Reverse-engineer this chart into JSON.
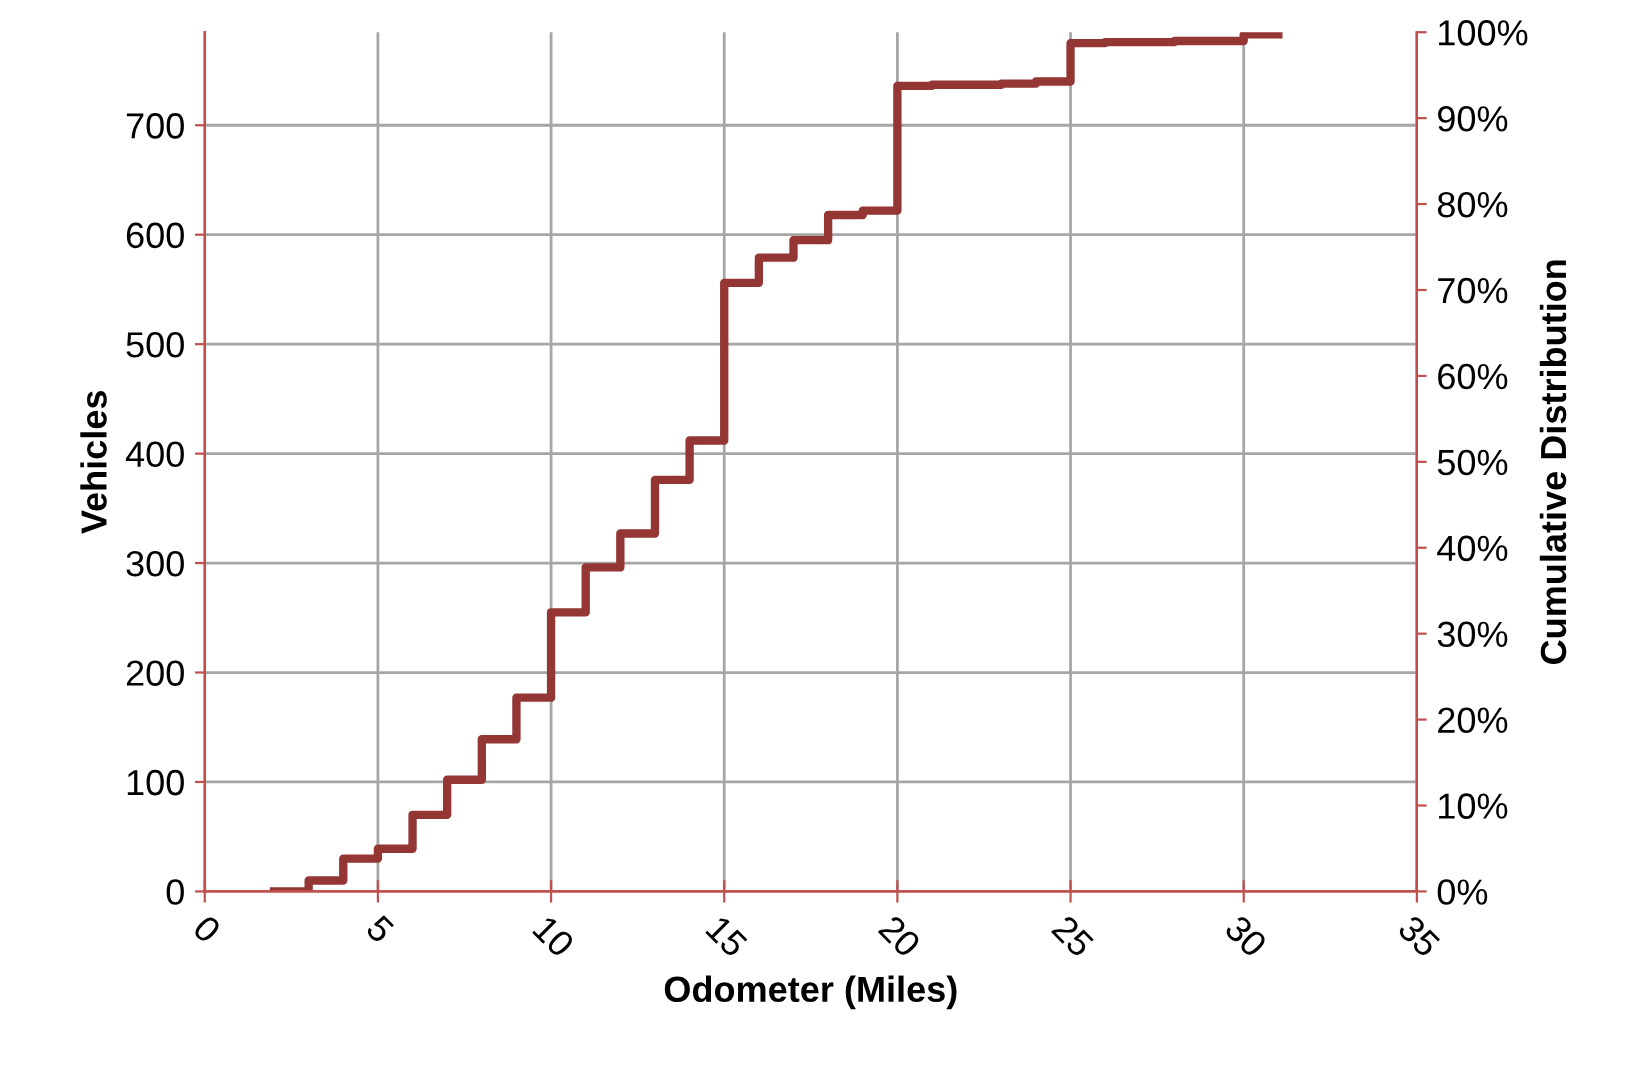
{
  "chart_data": {
    "type": "step",
    "xlabel": "Odometer (Miles)",
    "ylabel": "Vehicles",
    "y2label": "Cumulative Distribution",
    "x": [
      2,
      3,
      4,
      5,
      6,
      7,
      8,
      9,
      10,
      11,
      12,
      13,
      14,
      15,
      16,
      17,
      18,
      19,
      20,
      21,
      22,
      23,
      24,
      25,
      26,
      27,
      28,
      29,
      30,
      31
    ],
    "series": [
      {
        "color": "#943634",
        "values": [
          0,
          10,
          30,
          39,
          70,
          102,
          139,
          177,
          255,
          296,
          327,
          376,
          412,
          556,
          579,
          595,
          618,
          622,
          736,
          737,
          737,
          738,
          740,
          775,
          776,
          776,
          777,
          777,
          783,
          783
        ]
      }
    ],
    "xlim": [
      0,
      35
    ],
    "xticks": [
      0,
      5,
      10,
      15,
      20,
      25,
      30,
      35
    ],
    "ylim": [
      0,
      785
    ],
    "yticks": [
      0,
      100,
      200,
      300,
      400,
      500,
      600,
      700
    ],
    "y2lim": [
      0,
      1
    ],
    "y2ticks": [
      {
        "value": 0,
        "label": "0%"
      },
      {
        "value": 0.1,
        "label": "10%"
      },
      {
        "value": 0.2,
        "label": "20%"
      },
      {
        "value": 0.3,
        "label": "30%"
      },
      {
        "value": 0.4,
        "label": "40%"
      },
      {
        "value": 0.5,
        "label": "50%"
      },
      {
        "value": 0.6,
        "label": "60%"
      },
      {
        "value": 0.7,
        "label": "70%"
      },
      {
        "value": 0.8,
        "label": "80%"
      },
      {
        "value": 0.9,
        "label": "90%"
      },
      {
        "value": 1,
        "label": "100%"
      }
    ],
    "grid": true,
    "legend": false,
    "marker": "none",
    "line_style": "solid"
  }
}
